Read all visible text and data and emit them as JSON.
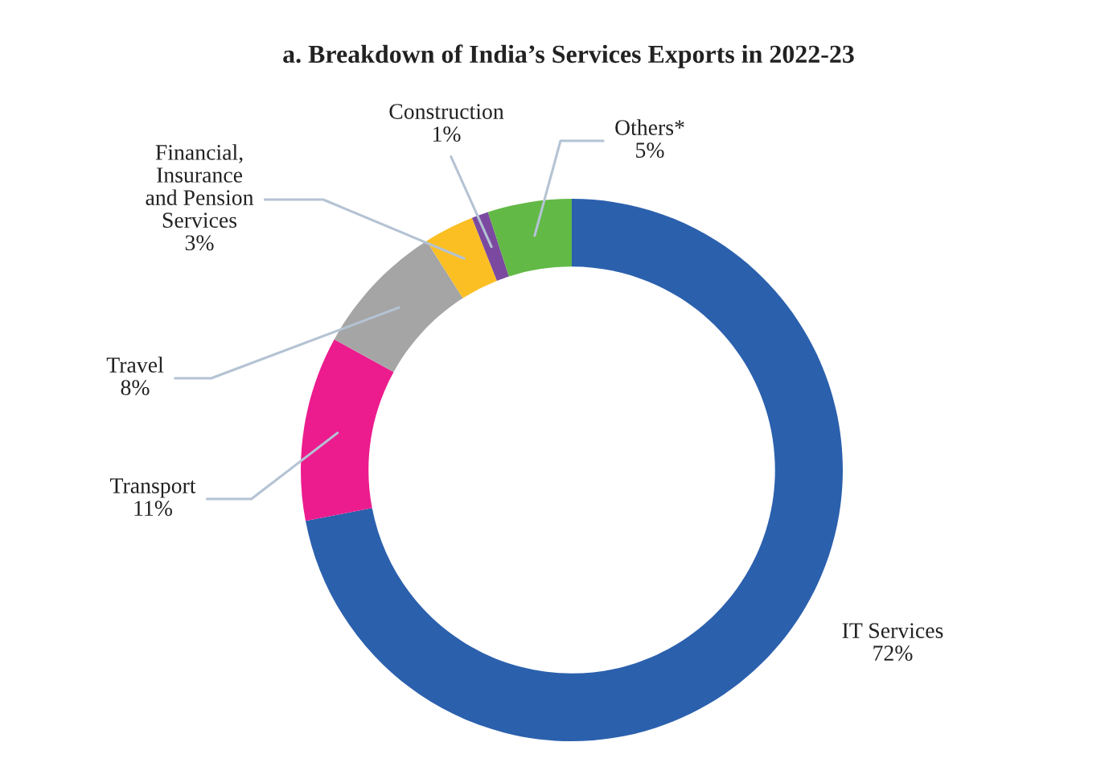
{
  "chart_data": {
    "type": "donut",
    "title": "a. Breakdown of India’s Services Exports in 2022-23",
    "categories": [
      "IT Services",
      "Transport",
      "Travel",
      "Financial,\nInsurance\nand Pension\nServices",
      "Construction",
      "Others*"
    ],
    "values": [
      72,
      11,
      8,
      3,
      1,
      5
    ],
    "value_labels": [
      "72%",
      "11%",
      "8%",
      "3%",
      "1%",
      "5%"
    ],
    "colors": [
      "#2b60ad",
      "#ec1c8e",
      "#a5a5a5",
      "#fbbf24",
      "#7b4aa0",
      "#62b946"
    ],
    "legend": false
  }
}
